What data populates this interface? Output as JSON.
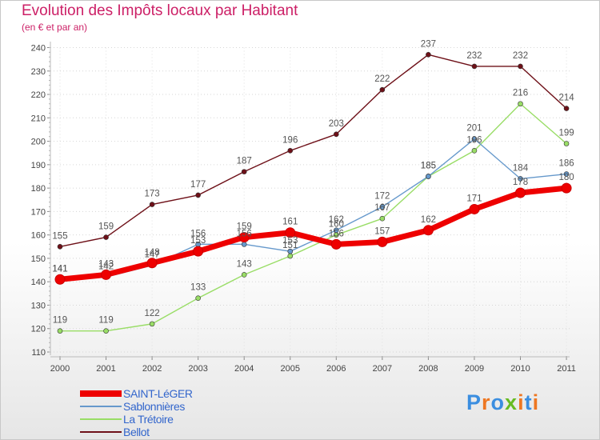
{
  "chart_data": {
    "type": "line",
    "title": "Evolution des Impôts locaux par Habitant",
    "subtitle": "(en € et par an)",
    "xlabel": "",
    "ylabel": "",
    "x": [
      "2000",
      "2001",
      "2002",
      "2003",
      "2004",
      "2005",
      "2006",
      "2007",
      "2008",
      "2009",
      "2010",
      "2011"
    ],
    "ylim": [
      110,
      240
    ],
    "yticks": [
      "110",
      "120",
      "130",
      "140",
      "150",
      "160",
      "170",
      "180",
      "190",
      "200",
      "210",
      "220",
      "230",
      "240"
    ],
    "legend_position": "bottom-left",
    "series": [
      {
        "name": "Bellot",
        "color": "#6e1018",
        "values": [
          155,
          159,
          173,
          177,
          187,
          196,
          203,
          222,
          237,
          232,
          232,
          214
        ]
      },
      {
        "name": "La Trétoire",
        "color": "#99dd66",
        "values": [
          119,
          119,
          122,
          133,
          143,
          151,
          160,
          167,
          185,
          196,
          216,
          199
        ]
      },
      {
        "name": "Sablonnières",
        "color": "#6699cc",
        "values": [
          141,
          142,
          147,
          156,
          156,
          153,
          162,
          172,
          185,
          201,
          184,
          186
        ]
      },
      {
        "name": "SAINT-LéGER",
        "color": "#ee0000",
        "values": [
          141,
          143,
          148,
          153,
          159,
          161,
          156,
          157,
          162,
          171,
          178,
          180
        ]
      }
    ]
  },
  "legend": [
    {
      "label": "SAINT-LéGER",
      "color": "#ee0000",
      "thickness": 8,
      "text_color": "#3366cc"
    },
    {
      "label": "Sablonnières",
      "color": "#6699cc",
      "thickness": 2,
      "text_color": "#3366cc"
    },
    {
      "label": "La Trétoire",
      "color": "#99dd66",
      "thickness": 2,
      "text_color": "#3366cc"
    },
    {
      "label": "Bellot",
      "color": "#6e1018",
      "thickness": 2,
      "text_color": "#3366cc"
    }
  ],
  "logo": {
    "text": "Proxiti",
    "colors": [
      "#3b8ee0",
      "#ee7722",
      "#3b8ee0",
      "#66bb22",
      "#ee7722",
      "#3b8ee0",
      "#ee7722"
    ]
  }
}
